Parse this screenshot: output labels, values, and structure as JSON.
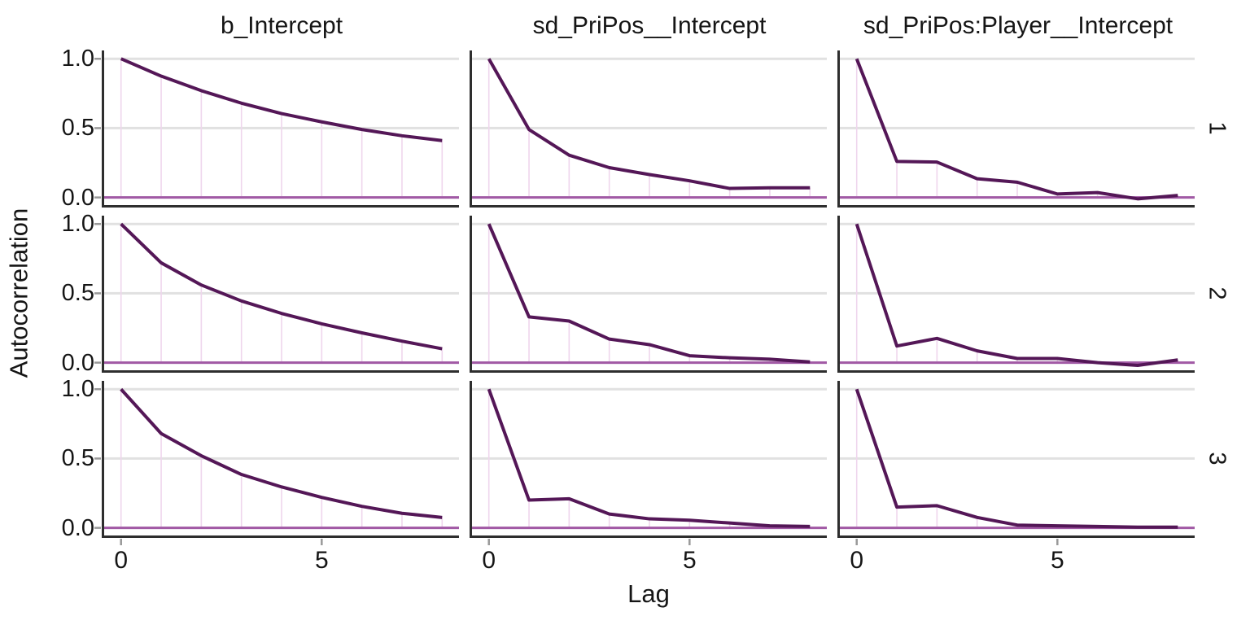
{
  "chart_data": {
    "type": "line",
    "description": "Faceted MCMC autocorrelation plot; columns are model parameters, rows are chains 1-3; thin light stems at each lag with a thick ACF line and a horizontal reference line at 0",
    "title": "",
    "xlabel": "Lag",
    "ylabel": "Autocorrelation",
    "facet_cols": [
      "b_Intercept",
      "sd_PriPos__Intercept",
      "sd_PriPos:Player__Intercept"
    ],
    "facet_rows": [
      "1",
      "2",
      "3"
    ],
    "lags": [
      0,
      1,
      2,
      3,
      4,
      5,
      6,
      7,
      8
    ],
    "xlim": [
      -0.42,
      8.42
    ],
    "ylim": [
      -0.055,
      1.06
    ],
    "x_tick_values": [
      0,
      5
    ],
    "x_tick_labels": [
      "0",
      "5"
    ],
    "y_tick_values": [
      1.0,
      0.5,
      0.0
    ],
    "y_tick_labels": [
      "1.0",
      "0.5",
      "0.0"
    ],
    "grid": true,
    "legend": "none",
    "series": [
      {
        "param": "b_Intercept",
        "chain": "1",
        "acf": [
          1.0,
          0.875,
          0.77,
          0.68,
          0.605,
          0.545,
          0.49,
          0.445,
          0.41
        ]
      },
      {
        "param": "sd_PriPos__Intercept",
        "chain": "1",
        "acf": [
          1.0,
          0.49,
          0.305,
          0.215,
          0.165,
          0.12,
          0.065,
          0.07,
          0.07
        ]
      },
      {
        "param": "sd_PriPos:Player__Intercept",
        "chain": "1",
        "acf": [
          1.0,
          0.26,
          0.255,
          0.135,
          0.11,
          0.025,
          0.035,
          -0.01,
          0.015
        ]
      },
      {
        "param": "b_Intercept",
        "chain": "2",
        "acf": [
          1.0,
          0.72,
          0.56,
          0.445,
          0.355,
          0.28,
          0.215,
          0.155,
          0.1
        ]
      },
      {
        "param": "sd_PriPos__Intercept",
        "chain": "2",
        "acf": [
          1.0,
          0.33,
          0.3,
          0.17,
          0.13,
          0.05,
          0.035,
          0.025,
          0.005
        ]
      },
      {
        "param": "sd_PriPos:Player__Intercept",
        "chain": "2",
        "acf": [
          1.0,
          0.12,
          0.175,
          0.085,
          0.03,
          0.03,
          0.0,
          -0.02,
          0.02
        ]
      },
      {
        "param": "b_Intercept",
        "chain": "3",
        "acf": [
          1.0,
          0.68,
          0.52,
          0.385,
          0.295,
          0.22,
          0.155,
          0.105,
          0.075
        ]
      },
      {
        "param": "sd_PriPos__Intercept",
        "chain": "3",
        "acf": [
          1.0,
          0.2,
          0.21,
          0.1,
          0.065,
          0.055,
          0.035,
          0.015,
          0.01
        ]
      },
      {
        "param": "sd_PriPos:Player__Intercept",
        "chain": "3",
        "acf": [
          1.0,
          0.15,
          0.16,
          0.075,
          0.02,
          0.015,
          0.01,
          0.005,
          0.005
        ]
      }
    ],
    "colors": {
      "acf_line": "#541757",
      "stems": "#EFD6ED",
      "zero_line": "#A159A5",
      "gridline": "#E1E1E1",
      "axis_line": "#2E2E2E",
      "tick_mark": "#999999",
      "text": "#151515",
      "background": "#FFFFFF"
    }
  }
}
